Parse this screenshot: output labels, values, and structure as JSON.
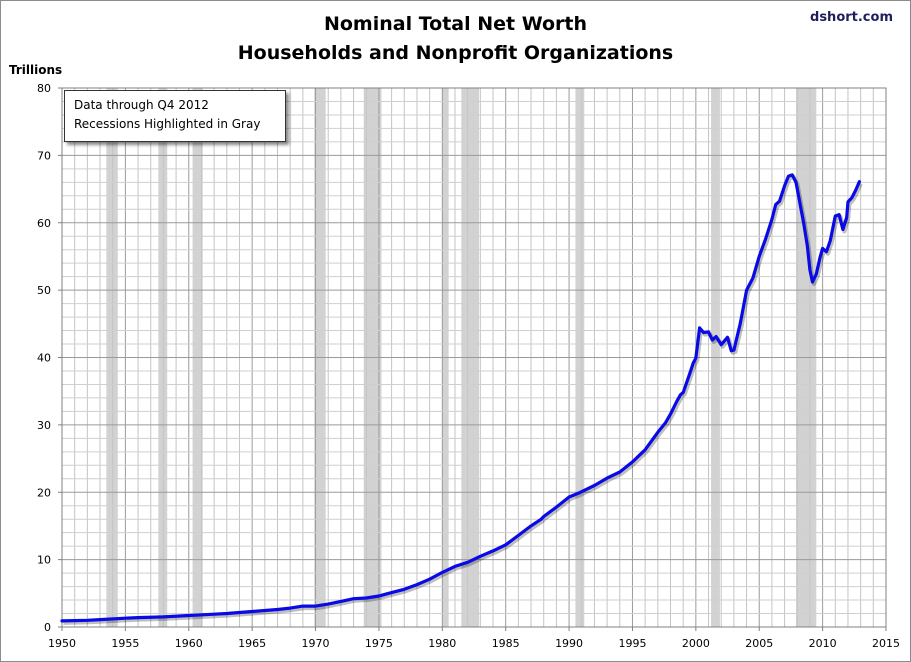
{
  "source": "dshort.com",
  "chart_data": {
    "type": "line",
    "title": "Nominal Total Net Worth",
    "subtitle": "Households and Nonprofit Organizations",
    "xlabel": "",
    "ylabel": "Trillions",
    "xlim": [
      1950,
      2015
    ],
    "ylim": [
      0,
      80
    ],
    "x_ticks": [
      1950,
      1955,
      1960,
      1965,
      1970,
      1975,
      1980,
      1985,
      1990,
      1995,
      2000,
      2005,
      2010,
      2015
    ],
    "y_ticks": [
      0,
      10,
      20,
      30,
      40,
      50,
      60,
      70,
      80
    ],
    "grid": true,
    "annotation": [
      "Data through  Q4 2012",
      "Recessions Highlighted in Gray"
    ],
    "recessions": [
      [
        1953.5,
        1954.4
      ],
      [
        1957.6,
        1958.3
      ],
      [
        1960.3,
        1961.1
      ],
      [
        1969.9,
        1970.8
      ],
      [
        1973.8,
        1975.2
      ],
      [
        1980.0,
        1980.5
      ],
      [
        1981.5,
        1982.9
      ],
      [
        1990.5,
        1991.2
      ],
      [
        2001.2,
        2001.9
      ],
      [
        2007.9,
        2009.5
      ]
    ],
    "series": [
      {
        "color": "#0a0ae6",
        "x": [
          1950,
          1952,
          1953,
          1955,
          1956,
          1958,
          1960,
          1962,
          1963,
          1965,
          1967,
          1968,
          1969,
          1970,
          1971,
          1972,
          1973,
          1974,
          1975,
          1976,
          1977,
          1978,
          1979,
          1980,
          1981,
          1982,
          1983,
          1984,
          1985,
          1986,
          1987,
          1987.8,
          1988,
          1989,
          1990,
          1990.8,
          1991,
          1992,
          1993,
          1994,
          1995,
          1996,
          1997,
          1997.6,
          1998,
          1998.5,
          1998.8,
          1999,
          1999.5,
          1999.8,
          2000,
          2000.3,
          2000.6,
          2001,
          2001.3,
          2001.6,
          2002,
          2002.5,
          2002.8,
          2003,
          2003.5,
          2004,
          2004.5,
          2005,
          2005.5,
          2006,
          2006.3,
          2006.6,
          2007,
          2007.3,
          2007.6,
          2007.9,
          2008.2,
          2008.5,
          2008.8,
          2009,
          2009.2,
          2009.5,
          2009.8,
          2010,
          2010.3,
          2010.6,
          2011,
          2011.3,
          2011.6,
          2011.9,
          2012,
          2012.3,
          2012.6,
          2012.9
        ],
        "y": [
          0.9,
          1.0,
          1.1,
          1.3,
          1.4,
          1.5,
          1.7,
          1.9,
          2.0,
          2.3,
          2.6,
          2.8,
          3.1,
          3.1,
          3.4,
          3.8,
          4.2,
          4.3,
          4.6,
          5.1,
          5.6,
          6.3,
          7.1,
          8.1,
          9.0,
          9.6,
          10.5,
          11.3,
          12.2,
          13.6,
          15.0,
          16.0,
          16.4,
          17.8,
          19.3,
          19.9,
          20.1,
          21.0,
          22.1,
          23.0,
          24.5,
          26.3,
          28.9,
          30.3,
          31.6,
          33.5,
          34.5,
          34.8,
          37.5,
          39.2,
          39.9,
          44.4,
          43.7,
          43.8,
          42.6,
          43.1,
          41.9,
          43.0,
          41.0,
          41.1,
          45.0,
          50.0,
          51.8,
          55.0,
          57.6,
          60.5,
          62.7,
          63.2,
          65.5,
          66.9,
          67.1,
          66.0,
          63.0,
          60.0,
          56.5,
          53.0,
          51.2,
          52.4,
          54.9,
          56.2,
          55.7,
          57.3,
          61.0,
          61.2,
          59.0,
          60.8,
          63.1,
          63.7,
          64.8,
          66.1
        ]
      }
    ]
  }
}
